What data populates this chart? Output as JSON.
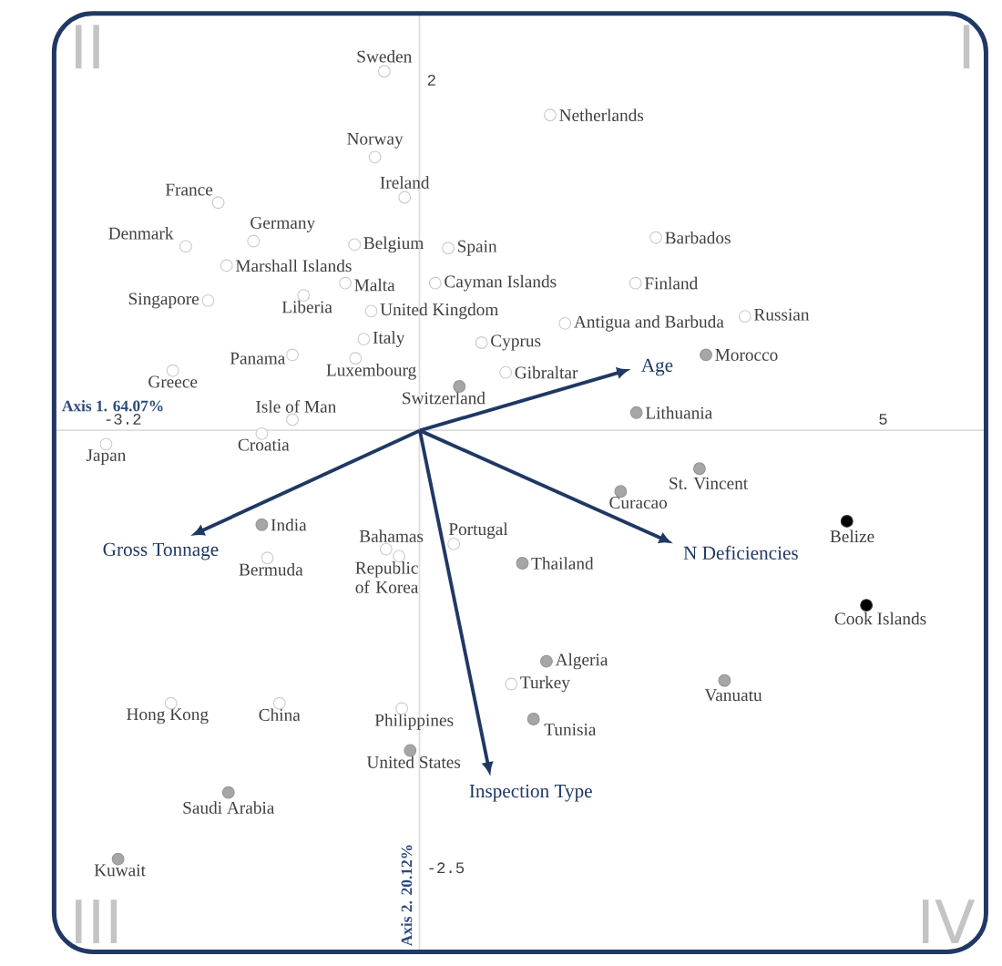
{
  "chart_data": {
    "type": "scatter",
    "xlabel": "Axis 1. 64.07%",
    "ylabel": "Axis 2. 20.12%",
    "xlim": [
      -3.94,
      6.11
    ],
    "ylim": [
      -2.98,
      2.38
    ],
    "xticks": [
      -3.2,
      5
    ],
    "yticks": [
      -2.5,
      2
    ],
    "marker": "circle",
    "series": [
      {
        "color": "#ffffff",
        "x": [
          -0.38,
          1.41,
          -0.48,
          -0.16,
          -2.17,
          -2.52,
          -1.79,
          -0.7,
          0.31,
          -2.08,
          -0.8,
          0.17,
          -2.28,
          -1.25,
          -0.52,
          -0.6,
          -1.37,
          -0.69,
          -2.66,
          0.67,
          0.93,
          1.57,
          2.33,
          2.55,
          3.51,
          -1.37,
          -1.7,
          -3.38,
          -1.64,
          -0.36,
          -0.22,
          0.37,
          -0.19,
          -2.68,
          -1.51,
          0.99
        ],
        "values": [
          2.05,
          1.8,
          1.56,
          1.33,
          1.3,
          1.05,
          1.08,
          1.06,
          1.04,
          0.94,
          0.84,
          0.84,
          0.74,
          0.77,
          0.68,
          0.52,
          0.43,
          0.41,
          0.34,
          0.5,
          0.33,
          0.61,
          0.84,
          1.1,
          0.65,
          0.06,
          -0.02,
          -0.08,
          -0.73,
          -0.68,
          -0.72,
          -0.65,
          -1.59,
          -1.56,
          -1.56,
          -1.45
        ]
      },
      {
        "color": "#a6a6a6",
        "x": [
          0.43,
          3.09,
          2.34,
          -1.7,
          1.11,
          3.02,
          2.17,
          -0.1,
          -2.06,
          -3.25,
          1.37,
          1.23,
          3.29
        ],
        "values": [
          0.25,
          0.43,
          0.1,
          -0.54,
          -0.76,
          -0.22,
          -0.35,
          -1.83,
          -2.07,
          -2.45,
          -1.32,
          -1.65,
          -1.43
        ]
      },
      {
        "color": "#000000",
        "x": [
          4.61,
          4.82
        ],
        "values": [
          -0.52,
          -1.0
        ]
      }
    ],
    "annotations": [
      "II",
      "I",
      "III",
      "IV",
      "Age",
      "Gross Tonnage",
      "N Deficiencies",
      "Inspection Type",
      {
        "text": "Sweden",
        "x": -0.38,
        "y": 2.05
      },
      {
        "text": "Netherlands",
        "x": 1.41,
        "y": 1.8
      },
      {
        "text": "Norway",
        "x": -0.48,
        "y": 1.56
      },
      {
        "text": "Ireland",
        "x": -0.16,
        "y": 1.33
      },
      {
        "text": "France",
        "x": -2.17,
        "y": 1.3
      },
      {
        "text": "Denmark",
        "x": -2.52,
        "y": 1.05
      },
      {
        "text": "Germany",
        "x": -1.79,
        "y": 1.08
      },
      {
        "text": "Belgium",
        "x": -0.7,
        "y": 1.06
      },
      {
        "text": "Spain",
        "x": 0.31,
        "y": 1.04
      },
      {
        "text": "Marshall Islands",
        "x": -2.08,
        "y": 0.94
      },
      {
        "text": "Malta",
        "x": -0.8,
        "y": 0.84
      },
      {
        "text": "Cayman Islands",
        "x": 0.17,
        "y": 0.84
      },
      {
        "text": "Singapore",
        "x": -2.28,
        "y": 0.74
      },
      {
        "text": "Liberia",
        "x": -1.25,
        "y": 0.77
      },
      {
        "text": "United Kingdom",
        "x": -0.52,
        "y": 0.68
      },
      {
        "text": "Italy",
        "x": -0.6,
        "y": 0.52
      },
      {
        "text": "Panama",
        "x": -1.37,
        "y": 0.43
      },
      {
        "text": "Luxembourg",
        "x": -0.69,
        "y": 0.41
      },
      {
        "text": "Greece",
        "x": -2.66,
        "y": 0.34
      },
      {
        "text": "Cyprus",
        "x": 0.67,
        "y": 0.5
      },
      {
        "text": "Gibraltar",
        "x": 0.93,
        "y": 0.33
      },
      {
        "text": "Antigua and Barbuda",
        "x": 1.57,
        "y": 0.61
      },
      {
        "text": "Finland",
        "x": 2.33,
        "y": 0.84
      },
      {
        "text": "Barbados",
        "x": 2.55,
        "y": 1.1
      },
      {
        "text": "Russian",
        "x": 3.51,
        "y": 0.65
      },
      {
        "text": "Isle of Man",
        "x": -1.37,
        "y": 0.06
      },
      {
        "text": "Croatia",
        "x": -1.7,
        "y": -0.02
      },
      {
        "text": "Japan",
        "x": -3.38,
        "y": -0.08
      },
      {
        "text": "Bermuda",
        "x": -1.64,
        "y": -0.73
      },
      {
        "text": "Bahamas",
        "x": -0.36,
        "y": -0.68
      },
      {
        "text": "Republic of Korea",
        "x": -0.22,
        "y": -0.72
      },
      {
        "text": "Portugal",
        "x": 0.37,
        "y": -0.65
      },
      {
        "text": "Philippines",
        "x": -0.19,
        "y": -1.59
      },
      {
        "text": "Hong Kong",
        "x": -2.68,
        "y": -1.56
      },
      {
        "text": "China",
        "x": -1.51,
        "y": -1.56
      },
      {
        "text": "Turkey",
        "x": 0.99,
        "y": -1.45
      },
      {
        "text": "Switzerland",
        "x": 0.43,
        "y": 0.25
      },
      {
        "text": "Morocco",
        "x": 3.09,
        "y": 0.43
      },
      {
        "text": "Lithuania",
        "x": 2.34,
        "y": 0.1
      },
      {
        "text": "India",
        "x": -1.7,
        "y": -0.54
      },
      {
        "text": "Thailand",
        "x": 1.11,
        "y": -0.76
      },
      {
        "text": "St. Vincent",
        "x": 3.02,
        "y": -0.22
      },
      {
        "text": "Curacao",
        "x": 2.17,
        "y": -0.35
      },
      {
        "text": "United States",
        "x": -0.1,
        "y": -1.83
      },
      {
        "text": "Saudi Arabia",
        "x": -2.06,
        "y": -2.07
      },
      {
        "text": "Kuwait",
        "x": -3.25,
        "y": -2.45
      },
      {
        "text": "Algeria",
        "x": 1.37,
        "y": -1.32
      },
      {
        "text": "Tunisia",
        "x": 1.23,
        "y": -1.65
      },
      {
        "text": "Vanuatu",
        "x": 3.29,
        "y": -1.43
      },
      {
        "text": "Belize",
        "x": 4.61,
        "y": -0.52
      },
      {
        "text": "Cook Islands",
        "x": 4.82,
        "y": -1.0
      }
    ]
  }
}
